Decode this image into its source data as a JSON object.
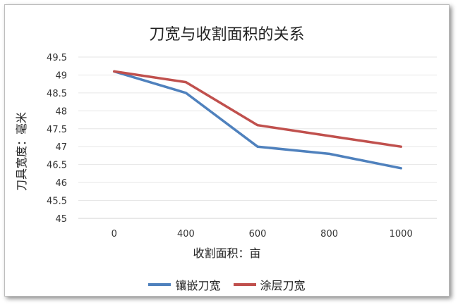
{
  "chart_data": {
    "type": "line",
    "title": "刀宽与收割面积的关系",
    "xlabel": "收割面积：亩",
    "ylabel": "刀具宽度：毫米",
    "categories": [
      "0",
      "400",
      "600",
      "800",
      "1000"
    ],
    "y_ticks": [
      "49.5",
      "49",
      "48.5",
      "48",
      "47.5",
      "47",
      "46.5",
      "46",
      "45.5",
      "45"
    ],
    "ylim": [
      45,
      49.5
    ],
    "grid": true,
    "legend_position": "bottom",
    "series": [
      {
        "name": "镶嵌刀宽",
        "color": "#4f81bd",
        "values": [
          49.1,
          48.5,
          47.0,
          46.8,
          46.4
        ]
      },
      {
        "name": "涂层刀宽",
        "color": "#c0504d",
        "values": [
          49.1,
          48.8,
          47.6,
          47.3,
          47.0
        ]
      }
    ]
  }
}
